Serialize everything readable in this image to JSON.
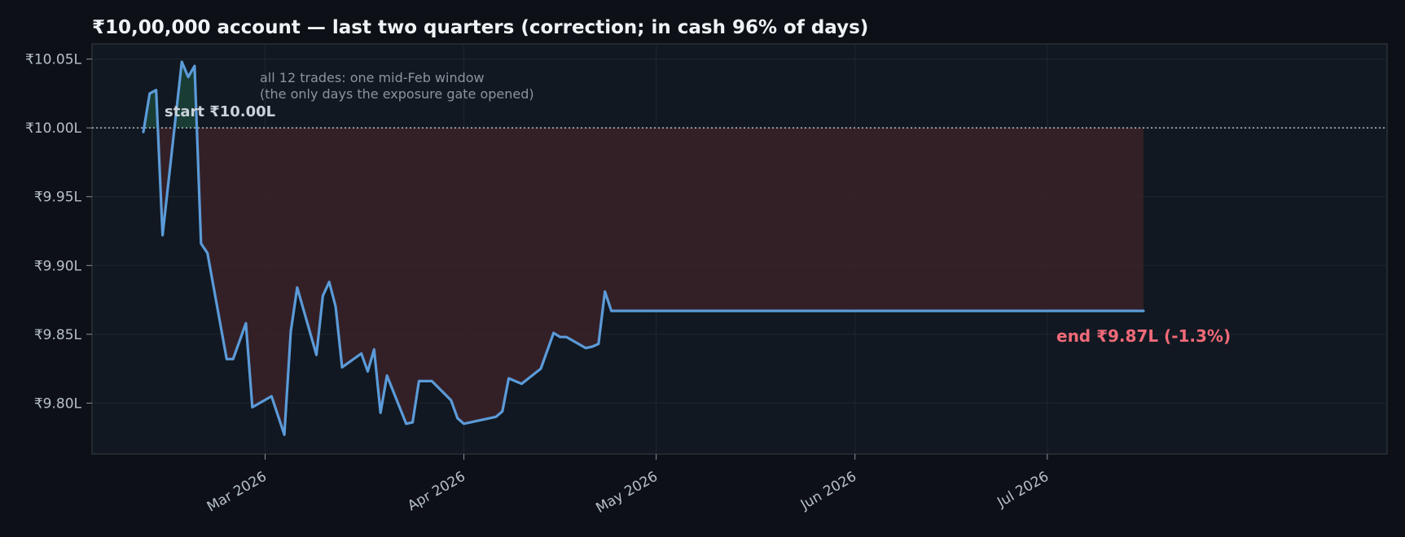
{
  "chart_data": {
    "type": "line",
    "title": "₹10,00,000 account — last two quarters (correction; in cash 96% of days)",
    "xlabel": "",
    "ylabel": "",
    "x_ticks": [
      {
        "date": "2026-03-01",
        "label": "Mar 2026"
      },
      {
        "date": "2026-04-01",
        "label": "Apr 2026"
      },
      {
        "date": "2026-05-01",
        "label": "May 2026"
      },
      {
        "date": "2026-06-01",
        "label": "Jun 2026"
      },
      {
        "date": "2026-07-01",
        "label": "Jul 2026"
      }
    ],
    "xlim": [
      "2026-02-02",
      "2026-08-23"
    ],
    "y_ticks": [
      {
        "value": 980000,
        "label": "₹9.80L"
      },
      {
        "value": 985000,
        "label": "₹9.85L"
      },
      {
        "value": 990000,
        "label": "₹9.90L"
      },
      {
        "value": 995000,
        "label": "₹9.95L"
      },
      {
        "value": 1000000,
        "label": "₹10.00L"
      },
      {
        "value": 1005000,
        "label": "₹10.05L"
      }
    ],
    "ylim": [
      976300,
      1006100
    ],
    "baseline": 1000000,
    "grid": true,
    "series": [
      {
        "points": [
          [
            "2026-02-10",
            999700
          ],
          [
            "2026-02-11",
            1002500
          ],
          [
            "2026-02-12",
            1002750
          ],
          [
            "2026-02-13",
            992200
          ],
          [
            "2026-02-16",
            1004800
          ],
          [
            "2026-02-17",
            1003700
          ],
          [
            "2026-02-18",
            1004500
          ],
          [
            "2026-02-19",
            991600
          ],
          [
            "2026-02-20",
            990900
          ],
          [
            "2026-02-23",
            983200
          ],
          [
            "2026-02-24",
            983200
          ],
          [
            "2026-02-26",
            985800
          ],
          [
            "2026-02-27",
            979700
          ],
          [
            "2026-03-02",
            980500
          ],
          [
            "2026-03-04",
            977700
          ],
          [
            "2026-03-05",
            985200
          ],
          [
            "2026-03-06",
            988400
          ],
          [
            "2026-03-09",
            983500
          ],
          [
            "2026-03-10",
            987800
          ],
          [
            "2026-03-11",
            988800
          ],
          [
            "2026-03-12",
            987000
          ],
          [
            "2026-03-13",
            982600
          ],
          [
            "2026-03-16",
            983600
          ],
          [
            "2026-03-17",
            982300
          ],
          [
            "2026-03-18",
            983900
          ],
          [
            "2026-03-19",
            979300
          ],
          [
            "2026-03-20",
            982000
          ],
          [
            "2026-03-23",
            978500
          ],
          [
            "2026-03-24",
            978600
          ],
          [
            "2026-03-25",
            981600
          ],
          [
            "2026-03-27",
            981600
          ],
          [
            "2026-03-30",
            980200
          ],
          [
            "2026-03-31",
            978900
          ],
          [
            "2026-04-01",
            978500
          ],
          [
            "2026-04-06",
            979000
          ],
          [
            "2026-04-07",
            979400
          ],
          [
            "2026-04-08",
            981800
          ],
          [
            "2026-04-10",
            981400
          ],
          [
            "2026-04-13",
            982500
          ],
          [
            "2026-04-15",
            985100
          ],
          [
            "2026-04-16",
            984800
          ],
          [
            "2026-04-17",
            984800
          ],
          [
            "2026-04-20",
            984000
          ],
          [
            "2026-04-21",
            984100
          ],
          [
            "2026-04-22",
            984300
          ],
          [
            "2026-04-23",
            988100
          ],
          [
            "2026-04-24",
            986700
          ],
          [
            "2026-07-16",
            986700
          ]
        ]
      }
    ],
    "annotations": {
      "trades_line1": "all 12 trades: one mid-Feb window",
      "trades_line2": "(the only days the exposure gate opened)",
      "start": "start ₹10.00L",
      "end": "end ₹9.87L  (-1.3%)"
    },
    "colors": {
      "line": "#5b9bd9",
      "loss_fill": "#3a2228",
      "gain_fill": "#1c4a3c",
      "end_label": "#f06a78",
      "baseline": "#c9d1d9"
    }
  }
}
